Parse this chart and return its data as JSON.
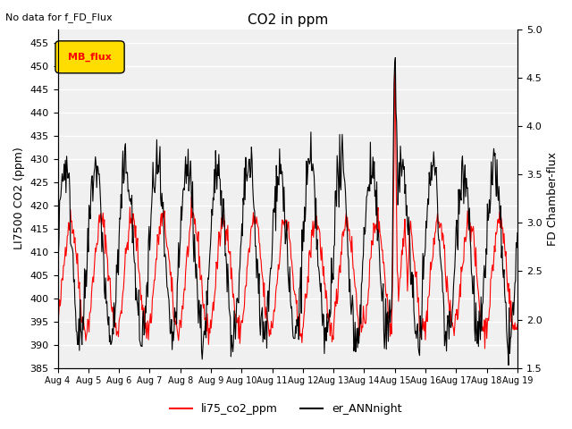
{
  "title": "CO2 in ppm",
  "top_left_text": "No data for f_FD_Flux",
  "ylabel_left": "LI7500 CO2 (ppm)",
  "ylabel_right": "FD Chamber-flux",
  "ylim_left": [
    385,
    458
  ],
  "ylim_right": [
    1.5,
    5.0
  ],
  "yticks_left": [
    385,
    390,
    395,
    400,
    405,
    410,
    415,
    420,
    425,
    430,
    435,
    440,
    445,
    450,
    455
  ],
  "yticks_right": [
    1.5,
    2.0,
    2.5,
    3.0,
    3.5,
    4.0,
    4.5,
    5.0
  ],
  "xlabel_ticks": [
    "Aug 4",
    "Aug 5",
    "Aug 6",
    "Aug 7",
    "Aug 8",
    "Aug 9",
    "Aug 10",
    "Aug 11",
    "Aug 12",
    "Aug 13",
    "Aug 14",
    "Aug 15",
    "Aug 16",
    "Aug 17",
    "Aug 18",
    "Aug 19"
  ],
  "legend_entries": [
    "li75_co2_ppm",
    "er_ANNnight"
  ],
  "legend_colors": [
    "red",
    "black"
  ],
  "mb_flux_box_color": "#ffdd00",
  "mb_flux_text": "MB_flux",
  "background_color": "#f0f0f0",
  "line_color_co2": "red",
  "line_color_ann": "black",
  "grid_color": "white",
  "grid_linewidth": 1.0
}
